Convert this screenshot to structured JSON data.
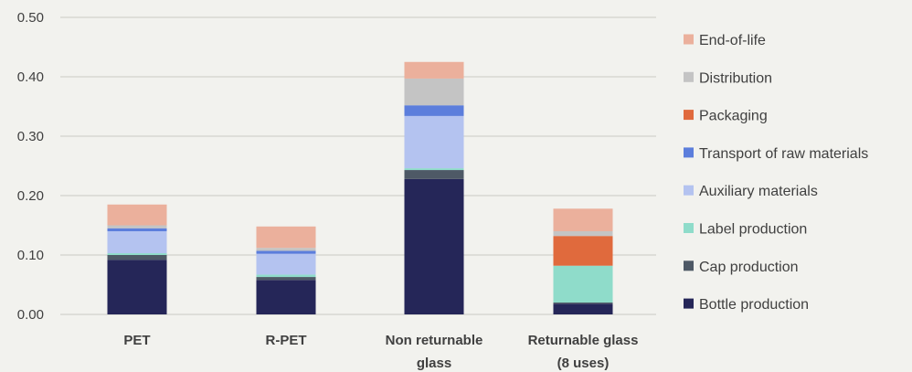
{
  "chart_data": {
    "type": "bar",
    "stacked": true,
    "categories": [
      "PET",
      "R-PET",
      "Non returnable glass",
      "Returnable glass (8 uses)"
    ],
    "category_lines": [
      [
        "PET"
      ],
      [
        "R-PET"
      ],
      [
        "Non returnable",
        "glass"
      ],
      [
        "Returnable glass",
        "(8 uses)"
      ]
    ],
    "ylim": [
      0,
      0.5
    ],
    "yticks": [
      "0.00",
      "0.10",
      "0.20",
      "0.30",
      "0.40",
      "0.50"
    ],
    "ytick_values": [
      0,
      0.1,
      0.2,
      0.3,
      0.4,
      0.5
    ],
    "grid": true,
    "legend_position": "right",
    "series": [
      {
        "name": "Bottle production",
        "color": "#252658",
        "values": [
          0.092,
          0.058,
          0.228,
          0.018
        ]
      },
      {
        "name": "Cap production",
        "color": "#4e5966",
        "values": [
          0.008,
          0.005,
          0.015,
          0.002
        ]
      },
      {
        "name": "Label production",
        "color": "#8fdcca",
        "values": [
          0.003,
          0.004,
          0.003,
          0.062
        ]
      },
      {
        "name": "Auxiliary materials",
        "color": "#b4c3f0",
        "values": [
          0.037,
          0.035,
          0.088,
          0.0
        ]
      },
      {
        "name": "Transport of raw materials",
        "color": "#5c7edc",
        "values": [
          0.005,
          0.005,
          0.018,
          0.0
        ]
      },
      {
        "name": "Packaging",
        "color": "#e06a3d",
        "values": [
          0.0,
          0.0,
          0.0,
          0.05
        ]
      },
      {
        "name": "Distribution",
        "color": "#c4c4c4",
        "values": [
          0.005,
          0.005,
          0.045,
          0.008
        ]
      },
      {
        "name": "End-of-life",
        "color": "#ebb09c",
        "values": [
          0.035,
          0.036,
          0.028,
          0.038
        ]
      }
    ]
  }
}
